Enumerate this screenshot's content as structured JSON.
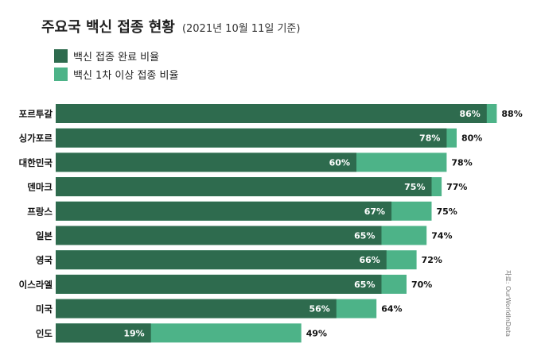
{
  "chart_data": {
    "type": "bar",
    "orientation": "horizontal",
    "title": "주요국 백신 접종 현황",
    "subtitle": "(2021년 10월 11일 기준)",
    "categories": [
      "포르투갈",
      "싱가포르",
      "대한민국",
      "덴마크",
      "프랑스",
      "일본",
      "영국",
      "이스라엘",
      "미국",
      "인도"
    ],
    "series": [
      {
        "name": "백신 접종 완료 비율",
        "values": [
          86,
          78,
          60,
          75,
          67,
          65,
          66,
          65,
          56,
          19
        ],
        "labels": [
          "86%",
          "78%",
          "60%",
          "75%",
          "67%",
          "65%",
          "66%",
          "65%",
          "56%",
          "19%"
        ],
        "color": "#2e6b4e"
      },
      {
        "name": "백신 1차 이상 접종 비율",
        "values": [
          88,
          80,
          78,
          77,
          75,
          74,
          72,
          70,
          64,
          49
        ],
        "labels": [
          "88%",
          "80%",
          "78%",
          "77%",
          "75%",
          "74%",
          "72%",
          "70%",
          "64%",
          "49%"
        ],
        "color": "#4db388"
      }
    ],
    "xlim": [
      0,
      100
    ],
    "legend_position": "top-left",
    "source": "자료: OurWorldInData"
  }
}
